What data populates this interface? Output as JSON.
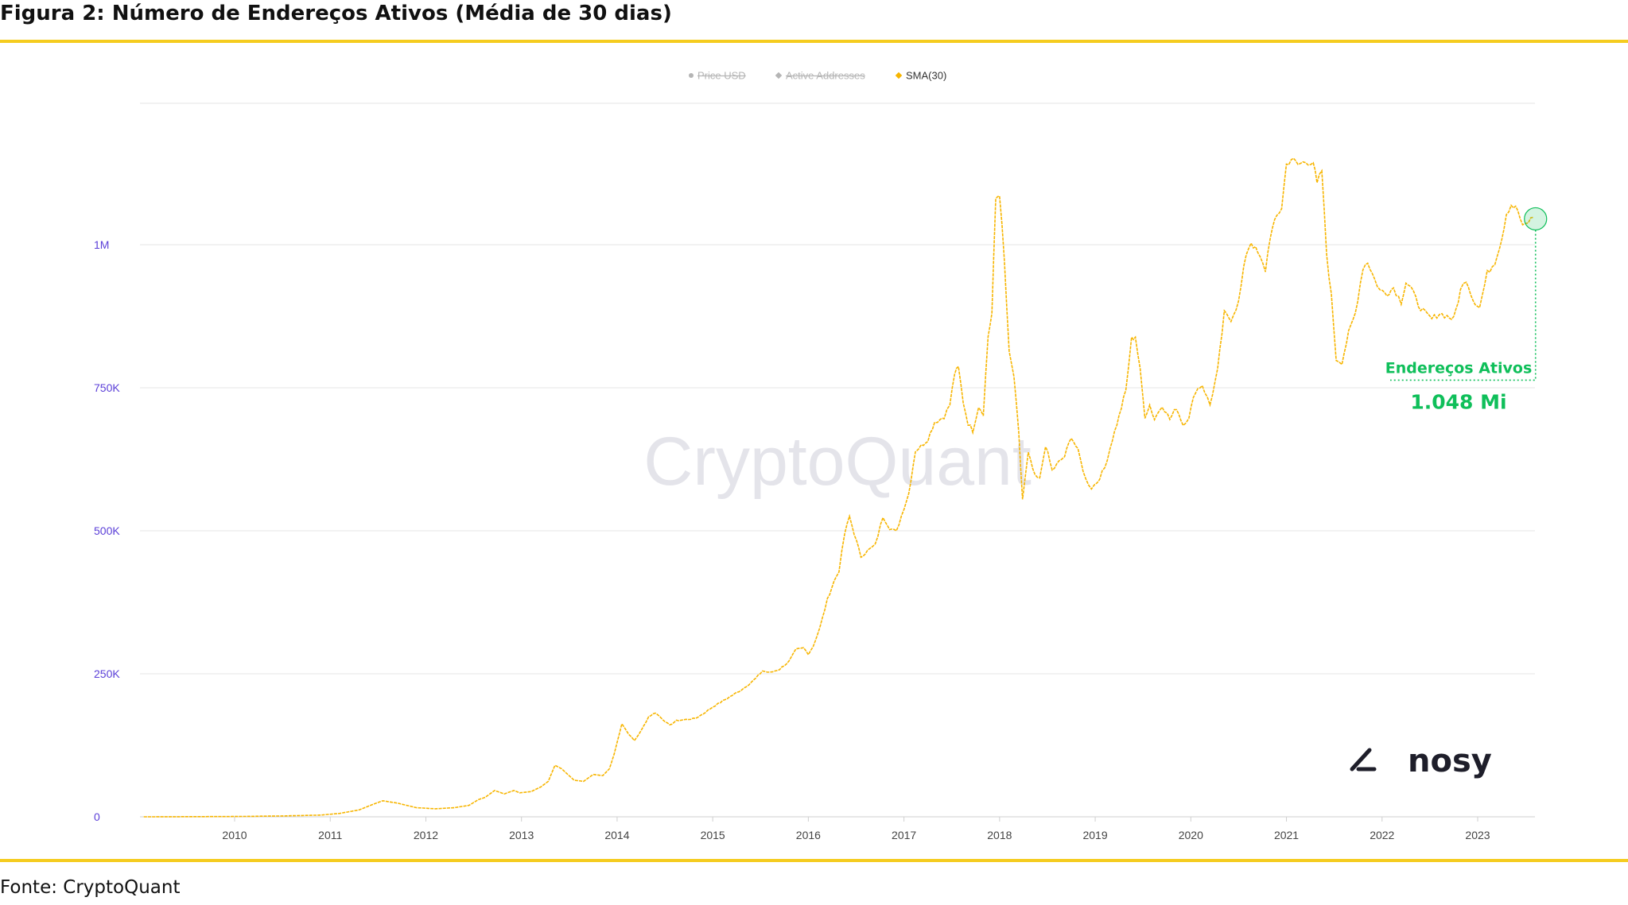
{
  "figure": {
    "title": "Figura 2: Número de Endereços Ativos (Média de 30 dias)",
    "source": "Fonte: CryptoQuant"
  },
  "watermark": "CryptoQuant",
  "brand_logo": {
    "text": "nosy",
    "icon": "nosy-logo-icon"
  },
  "colors": {
    "series": "#f7b500",
    "annotation": "#0fbf5a",
    "axis_label": "#5b3fd8",
    "tick_label": "#444444",
    "grid": "#e6e6e6",
    "rule": "#f5cc1f",
    "legend_disabled": "#b5b5b5"
  },
  "chart_data": {
    "type": "line",
    "legend": {
      "placement": "top-center",
      "items": [
        {
          "label": "Price USD",
          "active": false
        },
        {
          "label": "Active Addresses",
          "active": false
        },
        {
          "label": "SMA(30)",
          "active": true
        }
      ]
    },
    "x_ticks": [
      "2010",
      "2011",
      "2012",
      "2013",
      "2014",
      "2015",
      "2016",
      "2017",
      "2018",
      "2019",
      "2020",
      "2021",
      "2022",
      "2023"
    ],
    "x_range": [
      2009.05,
      2023.67
    ],
    "y_ticks": [
      {
        "value": 0,
        "label": "0"
      },
      {
        "value": 250000,
        "label": "250K"
      },
      {
        "value": 500000,
        "label": "500K"
      },
      {
        "value": 750000,
        "label": "750K"
      },
      {
        "value": 1000000,
        "label": "1M"
      }
    ],
    "ylim": [
      0,
      1250000
    ],
    "grid": true,
    "series": [
      {
        "name": "SMA(30)",
        "points": [
          [
            2009.05,
            0
          ],
          [
            2010.0,
            500
          ],
          [
            2010.5,
            1500
          ],
          [
            2010.9,
            3000
          ],
          [
            2011.1,
            6000
          ],
          [
            2011.3,
            12000
          ],
          [
            2011.45,
            22000
          ],
          [
            2011.55,
            28000
          ],
          [
            2011.7,
            24000
          ],
          [
            2011.9,
            16000
          ],
          [
            2012.1,
            14000
          ],
          [
            2012.3,
            16000
          ],
          [
            2012.45,
            20000
          ],
          [
            2012.55,
            30000
          ],
          [
            2012.62,
            34000
          ],
          [
            2012.72,
            46000
          ],
          [
            2012.82,
            40000
          ],
          [
            2012.92,
            46000
          ],
          [
            2012.98,
            42000
          ],
          [
            2013.1,
            44000
          ],
          [
            2013.2,
            52000
          ],
          [
            2013.28,
            62000
          ],
          [
            2013.35,
            90000
          ],
          [
            2013.42,
            84000
          ],
          [
            2013.55,
            64000
          ],
          [
            2013.65,
            62000
          ],
          [
            2013.75,
            74000
          ],
          [
            2013.85,
            72000
          ],
          [
            2013.92,
            84000
          ],
          [
            2013.97,
            110000
          ],
          [
            2014.05,
            163000
          ],
          [
            2014.12,
            145000
          ],
          [
            2014.18,
            133000
          ],
          [
            2014.25,
            150000
          ],
          [
            2014.33,
            175000
          ],
          [
            2014.4,
            182000
          ],
          [
            2014.48,
            170000
          ],
          [
            2014.55,
            160000
          ],
          [
            2014.62,
            168000
          ],
          [
            2014.72,
            170000
          ],
          [
            2014.82,
            172000
          ],
          [
            2014.9,
            180000
          ],
          [
            2015.0,
            192000
          ],
          [
            2015.08,
            200000
          ],
          [
            2015.18,
            210000
          ],
          [
            2015.3,
            222000
          ],
          [
            2015.38,
            232000
          ],
          [
            2015.45,
            242000
          ],
          [
            2015.52,
            255000
          ],
          [
            2015.6,
            252000
          ],
          [
            2015.7,
            258000
          ],
          [
            2015.8,
            272000
          ],
          [
            2015.87,
            292000
          ],
          [
            2015.95,
            295000
          ],
          [
            2016.0,
            285000
          ],
          [
            2016.05,
            298000
          ],
          [
            2016.12,
            330000
          ],
          [
            2016.2,
            380000
          ],
          [
            2016.27,
            412000
          ],
          [
            2016.32,
            430000
          ],
          [
            2016.38,
            495000
          ],
          [
            2016.43,
            525000
          ],
          [
            2016.48,
            495000
          ],
          [
            2016.55,
            455000
          ],
          [
            2016.62,
            465000
          ],
          [
            2016.7,
            475000
          ],
          [
            2016.78,
            525000
          ],
          [
            2016.85,
            505000
          ],
          [
            2016.92,
            498000
          ],
          [
            2017.0,
            540000
          ],
          [
            2017.05,
            565000
          ],
          [
            2017.12,
            640000
          ],
          [
            2017.18,
            648000
          ],
          [
            2017.25,
            660000
          ],
          [
            2017.32,
            690000
          ],
          [
            2017.38,
            695000
          ],
          [
            2017.42,
            700000
          ],
          [
            2017.48,
            720000
          ],
          [
            2017.53,
            775000
          ],
          [
            2017.57,
            785000
          ],
          [
            2017.62,
            725000
          ],
          [
            2017.67,
            688000
          ],
          [
            2017.72,
            675000
          ],
          [
            2017.78,
            718000
          ],
          [
            2017.83,
            705000
          ],
          [
            2017.88,
            840000
          ],
          [
            2017.92,
            880000
          ],
          [
            2017.96,
            1080000
          ],
          [
            2018.0,
            1090000
          ],
          [
            2018.05,
            970000
          ],
          [
            2018.1,
            810000
          ],
          [
            2018.15,
            770000
          ],
          [
            2018.2,
            670000
          ],
          [
            2018.24,
            555000
          ],
          [
            2018.3,
            635000
          ],
          [
            2018.37,
            595000
          ],
          [
            2018.42,
            590000
          ],
          [
            2018.48,
            650000
          ],
          [
            2018.55,
            605000
          ],
          [
            2018.62,
            620000
          ],
          [
            2018.68,
            630000
          ],
          [
            2018.75,
            665000
          ],
          [
            2018.82,
            640000
          ],
          [
            2018.9,
            590000
          ],
          [
            2018.96,
            575000
          ],
          [
            2019.02,
            585000
          ],
          [
            2019.1,
            610000
          ],
          [
            2019.18,
            660000
          ],
          [
            2019.25,
            700000
          ],
          [
            2019.32,
            745000
          ],
          [
            2019.38,
            835000
          ],
          [
            2019.42,
            840000
          ],
          [
            2019.47,
            780000
          ],
          [
            2019.52,
            700000
          ],
          [
            2019.57,
            720000
          ],
          [
            2019.62,
            695000
          ],
          [
            2019.7,
            720000
          ],
          [
            2019.78,
            695000
          ],
          [
            2019.85,
            715000
          ],
          [
            2019.92,
            685000
          ],
          [
            2019.98,
            700000
          ],
          [
            2020.05,
            745000
          ],
          [
            2020.12,
            755000
          ],
          [
            2020.2,
            720000
          ],
          [
            2020.28,
            780000
          ],
          [
            2020.35,
            880000
          ],
          [
            2020.42,
            870000
          ],
          [
            2020.5,
            900000
          ],
          [
            2020.58,
            985000
          ],
          [
            2020.63,
            1005000
          ],
          [
            2020.7,
            985000
          ],
          [
            2020.78,
            955000
          ],
          [
            2020.83,
            1015000
          ],
          [
            2020.9,
            1050000
          ],
          [
            2020.95,
            1065000
          ],
          [
            2021.0,
            1140000
          ],
          [
            2021.05,
            1150000
          ],
          [
            2021.12,
            1140000
          ],
          [
            2021.2,
            1145000
          ],
          [
            2021.28,
            1145000
          ],
          [
            2021.32,
            1105000
          ],
          [
            2021.37,
            1130000
          ],
          [
            2021.42,
            985000
          ],
          [
            2021.47,
            910000
          ],
          [
            2021.52,
            800000
          ],
          [
            2021.58,
            795000
          ],
          [
            2021.65,
            845000
          ],
          [
            2021.72,
            880000
          ],
          [
            2021.8,
            960000
          ],
          [
            2021.85,
            970000
          ],
          [
            2021.92,
            940000
          ],
          [
            2021.98,
            920000
          ],
          [
            2022.05,
            915000
          ],
          [
            2022.12,
            925000
          ],
          [
            2022.2,
            900000
          ],
          [
            2022.25,
            935000
          ],
          [
            2022.3,
            925000
          ],
          [
            2022.38,
            895000
          ],
          [
            2022.45,
            880000
          ],
          [
            2022.52,
            870000
          ],
          [
            2022.6,
            880000
          ],
          [
            2022.68,
            875000
          ],
          [
            2022.75,
            870000
          ],
          [
            2022.82,
            920000
          ],
          [
            2022.88,
            940000
          ],
          [
            2022.95,
            905000
          ],
          [
            2023.02,
            890000
          ],
          [
            2023.1,
            950000
          ],
          [
            2023.18,
            970000
          ],
          [
            2023.25,
            1010000
          ],
          [
            2023.3,
            1055000
          ],
          [
            2023.35,
            1070000
          ],
          [
            2023.42,
            1060000
          ],
          [
            2023.47,
            1030000
          ],
          [
            2023.53,
            1040000
          ],
          [
            2023.58,
            1048000
          ]
        ]
      }
    ],
    "annotation": {
      "label": "Endereços Ativos",
      "value": "1.048 Mi",
      "x": 2023.58,
      "y": 1048000
    }
  }
}
